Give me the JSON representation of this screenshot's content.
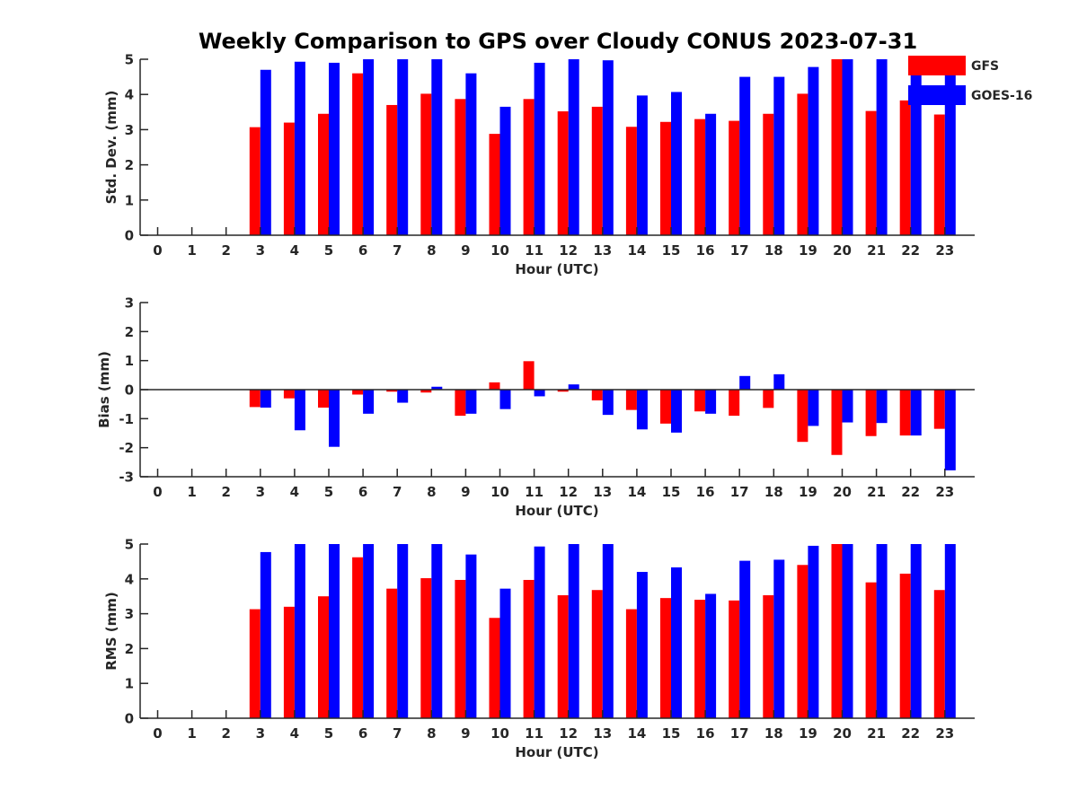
{
  "figure": {
    "title": "Weekly Comparison to GPS over Cloudy CONUS 2023-07-31"
  },
  "legend": {
    "placement": "top-right",
    "entries": [
      {
        "label": "GFS",
        "color": "#ff0000"
      },
      {
        "label": "GOES-16",
        "color": "#0000ff"
      }
    ]
  },
  "chart_data": [
    {
      "type": "bar",
      "xlabel": "Hour (UTC)",
      "ylabel": "Std. Dev. (mm)",
      "ylim": [
        0,
        5
      ],
      "yticks": [
        "0",
        "1",
        "2",
        "3",
        "4",
        "5"
      ],
      "categories": [
        "0",
        "1",
        "2",
        "3",
        "4",
        "5",
        "6",
        "7",
        "8",
        "9",
        "10",
        "11",
        "12",
        "13",
        "14",
        "15",
        "16",
        "17",
        "18",
        "19",
        "20",
        "21",
        "22",
        "23"
      ],
      "grid": false,
      "series": [
        {
          "name": "GFS",
          "color": "#ff0000",
          "values": [
            null,
            null,
            null,
            3.07,
            3.2,
            3.45,
            4.6,
            3.7,
            4.02,
            3.87,
            2.88,
            3.87,
            3.52,
            3.65,
            3.08,
            3.22,
            3.3,
            3.25,
            3.45,
            4.02,
            5.0,
            3.53,
            3.83,
            3.43
          ]
        },
        {
          "name": "GOES-16",
          "color": "#0000ff",
          "values": [
            null,
            null,
            null,
            4.7,
            4.93,
            4.9,
            5.0,
            5.0,
            5.0,
            4.6,
            3.65,
            4.9,
            5.0,
            4.97,
            3.97,
            4.07,
            3.45,
            4.5,
            4.5,
            4.78,
            5.0,
            5.0,
            5.0,
            5.0
          ]
        }
      ]
    },
    {
      "type": "bar",
      "xlabel": "Hour (UTC)",
      "ylabel": "Bias (mm)",
      "ylim": [
        -3,
        3
      ],
      "yticks": [
        "-3",
        "-2",
        "-1",
        "0",
        "1",
        "2",
        "3"
      ],
      "categories": [
        "0",
        "1",
        "2",
        "3",
        "4",
        "5",
        "6",
        "7",
        "8",
        "9",
        "10",
        "11",
        "12",
        "13",
        "14",
        "15",
        "16",
        "17",
        "18",
        "19",
        "20",
        "21",
        "22",
        "23"
      ],
      "grid": false,
      "series": [
        {
          "name": "GFS",
          "color": "#ff0000",
          "values": [
            null,
            null,
            null,
            -0.6,
            -0.3,
            -0.62,
            -0.17,
            -0.07,
            -0.1,
            -0.9,
            0.25,
            0.98,
            -0.07,
            -0.37,
            -0.7,
            -1.17,
            -0.75,
            -0.9,
            -0.63,
            -1.8,
            -2.25,
            -1.6,
            -1.58,
            -1.35
          ]
        },
        {
          "name": "GOES-16",
          "color": "#0000ff",
          "values": [
            null,
            null,
            null,
            -0.62,
            -1.4,
            -1.97,
            -0.83,
            -0.45,
            0.1,
            -0.83,
            -0.67,
            -0.23,
            0.18,
            -0.87,
            -1.37,
            -1.48,
            -0.83,
            0.47,
            0.53,
            -1.25,
            -1.13,
            -1.15,
            -1.58,
            -2.78
          ]
        }
      ]
    },
    {
      "type": "bar",
      "xlabel": "Hour (UTC)",
      "ylabel": "RMS (mm)",
      "ylim": [
        0,
        5
      ],
      "yticks": [
        "0",
        "1",
        "2",
        "3",
        "4",
        "5"
      ],
      "categories": [
        "0",
        "1",
        "2",
        "3",
        "4",
        "5",
        "6",
        "7",
        "8",
        "9",
        "10",
        "11",
        "12",
        "13",
        "14",
        "15",
        "16",
        "17",
        "18",
        "19",
        "20",
        "21",
        "22",
        "23"
      ],
      "grid": false,
      "series": [
        {
          "name": "GFS",
          "color": "#ff0000",
          "values": [
            null,
            null,
            null,
            3.13,
            3.2,
            3.5,
            4.62,
            3.72,
            4.02,
            3.97,
            2.88,
            3.97,
            3.53,
            3.68,
            3.13,
            3.45,
            3.4,
            3.38,
            3.53,
            4.4,
            5.0,
            3.9,
            4.15,
            3.68
          ]
        },
        {
          "name": "GOES-16",
          "color": "#0000ff",
          "values": [
            null,
            null,
            null,
            4.77,
            5.0,
            5.0,
            5.0,
            5.0,
            5.0,
            4.7,
            3.72,
            4.93,
            5.0,
            5.0,
            4.2,
            4.33,
            3.57,
            4.52,
            4.55,
            4.95,
            5.0,
            5.0,
            5.0,
            5.0
          ]
        }
      ]
    }
  ]
}
